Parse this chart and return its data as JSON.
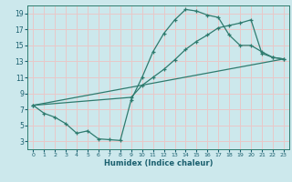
{
  "xlabel": "Humidex (Indice chaleur)",
  "bg_color": "#cce8ec",
  "grid_color": "#e8c8c8",
  "line_color": "#2e7b6e",
  "xlim": [
    -0.5,
    23.5
  ],
  "ylim": [
    2,
    20
  ],
  "xticks": [
    0,
    1,
    2,
    3,
    4,
    5,
    6,
    7,
    8,
    9,
    10,
    11,
    12,
    13,
    14,
    15,
    16,
    17,
    18,
    19,
    20,
    21,
    22,
    23
  ],
  "yticks": [
    3,
    5,
    7,
    9,
    11,
    13,
    15,
    17,
    19
  ],
  "line1_x": [
    0,
    1,
    2,
    3,
    4,
    5,
    6,
    7,
    8,
    9,
    10,
    11,
    12,
    13,
    14,
    15,
    16,
    17,
    18,
    19,
    20,
    21,
    22,
    23
  ],
  "line1_y": [
    7.5,
    6.5,
    6.0,
    5.2,
    4.0,
    4.3,
    3.3,
    3.2,
    3.1,
    8.2,
    11.0,
    14.2,
    16.5,
    18.2,
    19.5,
    19.3,
    18.8,
    18.5,
    16.3,
    15.0,
    15.0,
    14.2,
    13.5,
    13.3
  ],
  "line2_x": [
    0,
    9,
    10,
    11,
    12,
    13,
    14,
    15,
    16,
    17,
    18,
    19,
    20,
    21,
    22,
    23
  ],
  "line2_y": [
    7.5,
    8.5,
    10.0,
    11.0,
    12.0,
    13.2,
    14.5,
    15.5,
    16.3,
    17.2,
    17.5,
    17.8,
    18.2,
    14.0,
    13.5,
    13.3
  ],
  "line3_x": [
    0,
    23
  ],
  "line3_y": [
    7.5,
    13.3
  ]
}
